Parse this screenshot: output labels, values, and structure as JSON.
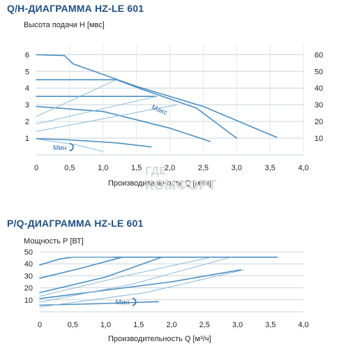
{
  "chart_data": [
    {
      "type": "line",
      "title": "Q/H-ДИАГРАММА HZ-LE 601",
      "ylabel": "Высота подачи Н [мвс]",
      "xlabel": "Производительность Q [м³/ч]",
      "x_ticks": [
        "0",
        "0,5",
        "1,0",
        "1,5",
        "2,0",
        "2,5",
        "3,0",
        "3,5",
        "4,0"
      ],
      "y_ticks": [
        "1",
        "2",
        "3",
        "4",
        "5",
        "6"
      ],
      "y2_ticks": [
        "10",
        "20",
        "30",
        "40",
        "50",
        "60"
      ],
      "xlim": [
        0,
        4.0
      ],
      "ylim": [
        0,
        6.6
      ],
      "annotations": [
        {
          "text": "Макс",
          "x": 1.72,
          "y": 2.75
        },
        {
          "text": "Мин",
          "x": 0.25,
          "y": 0.3
        }
      ],
      "series": [
        {
          "values": [
            [
              0,
              6.0
            ],
            [
              0.42,
              5.95
            ],
            [
              0.55,
              5.45
            ],
            [
              1.5,
              4.1
            ],
            [
              2.5,
              2.9
            ],
            [
              3.6,
              1.05
            ]
          ]
        },
        {
          "values": [
            [
              0,
              4.5
            ],
            [
              1.2,
              4.5
            ],
            [
              1.6,
              3.9
            ],
            [
              2.4,
              2.8
            ],
            [
              3.0,
              1.0
            ]
          ]
        },
        {
          "values": [
            [
              0,
              3.5
            ],
            [
              1.8,
              3.5
            ]
          ]
        },
        {
          "values": [
            [
              0,
              2.9
            ],
            [
              1.0,
              2.6
            ],
            [
              2.0,
              1.6
            ],
            [
              2.6,
              0.8
            ]
          ]
        },
        {
          "values": [
            [
              0,
              0.97
            ],
            [
              0.5,
              0.9
            ],
            [
              1.2,
              0.72
            ],
            [
              1.72,
              0.47
            ]
          ]
        },
        {
          "values": [
            [
              0,
              2.3
            ],
            [
              1.2,
              4.5
            ]
          ]
        },
        {
          "values": [
            [
              0,
              1.85
            ],
            [
              1.8,
              3.5
            ]
          ]
        },
        {
          "values": [
            [
              0,
              1.4
            ],
            [
              2.1,
              3.0
            ]
          ]
        },
        {
          "values": [
            [
              0,
              0.95
            ],
            [
              0.6,
              0.6
            ],
            [
              1.0,
              0.2
            ]
          ]
        }
      ]
    },
    {
      "type": "line",
      "title": "P/Q-ДИАГРАММА HZ-LE 601",
      "ylabel": "Мощность Р [ВТ]",
      "xlabel": "Производительность Q [м³/ч]",
      "x_ticks": [
        "0",
        "0,5",
        "1,0",
        "1,5",
        "2,0",
        "2,5",
        "3,0",
        "3,5",
        "4,0"
      ],
      "y_ticks": [
        "10",
        "20",
        "30",
        "40",
        "50"
      ],
      "xlim": [
        0,
        4.0
      ],
      "ylim": [
        0,
        50
      ],
      "annotations": [
        {
          "text": "Мин",
          "x": 1.15,
          "y": 6
        }
      ],
      "series": [
        {
          "values": [
            [
              0,
              39
            ],
            [
              0.3,
              44
            ],
            [
              0.5,
              45.5
            ],
            [
              3.6,
              45.5
            ]
          ]
        },
        {
          "values": [
            [
              0,
              28
            ],
            [
              0.6,
              36
            ],
            [
              1.25,
              45.5
            ]
          ]
        },
        {
          "values": [
            [
              0,
              16
            ],
            [
              1.0,
              29
            ],
            [
              1.85,
              45.5
            ]
          ]
        },
        {
          "values": [
            [
              0,
              11
            ],
            [
              1.0,
              18
            ],
            [
              2.0,
              25
            ],
            [
              3.05,
              35
            ]
          ]
        },
        {
          "values": [
            [
              0,
              5.5
            ],
            [
              1.0,
              7
            ],
            [
              1.8,
              8.5
            ]
          ]
        },
        {
          "values": [
            [
              0.4,
              45.5
            ],
            [
              1.1,
              45.5
            ]
          ]
        },
        {
          "values": [
            [
              0,
              13
            ],
            [
              1.3,
              30
            ],
            [
              2.6,
              45.5
            ]
          ]
        },
        {
          "values": [
            [
              0,
              8
            ],
            [
              1.4,
              23
            ],
            [
              2.9,
              45.5
            ]
          ]
        },
        {
          "values": [
            [
              0,
              4
            ],
            [
              1.6,
              16
            ],
            [
              3.1,
              35
            ]
          ]
        }
      ]
    }
  ],
  "watermark": {
    "line1": "ГДЕ",
    "line2": "КОМФОРТ"
  },
  "colors": {
    "curve": "#4a8fc0",
    "curve_light": "#8ab8d8",
    "grid": "#c9d3dc",
    "title": "#1f4f82",
    "annotation": "#2f6fa6"
  }
}
